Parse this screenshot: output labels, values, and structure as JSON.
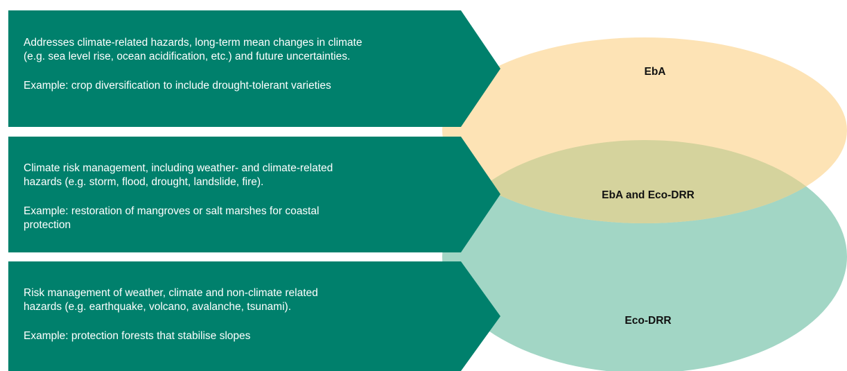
{
  "items": [
    {
      "description": [
        "Addresses climate-related hazards, long-term mean changes in climate",
        "(e.g. sea level rise, ocean acidification, etc.) and future uncertainties."
      ],
      "example": [
        "Example: crop diversification to include drought-tolerant varieties"
      ]
    },
    {
      "description": [
        "Climate risk management, including weather- and climate-related",
        "hazards (e.g. storm, flood, drought, landslide, fire)."
      ],
      "example": [
        "Example: restoration of mangroves or salt marshes for coastal",
        "protection"
      ]
    },
    {
      "description": [
        "Risk management of weather, climate and non-climate related",
        "hazards (e.g. earthquake, volcano, avalanche, tsunami)."
      ],
      "example": [
        "Example: protection forests that stabilise slopes"
      ]
    }
  ],
  "labels": [
    "EbA",
    "EbA and Eco-DRR",
    "Eco-DRR"
  ]
}
